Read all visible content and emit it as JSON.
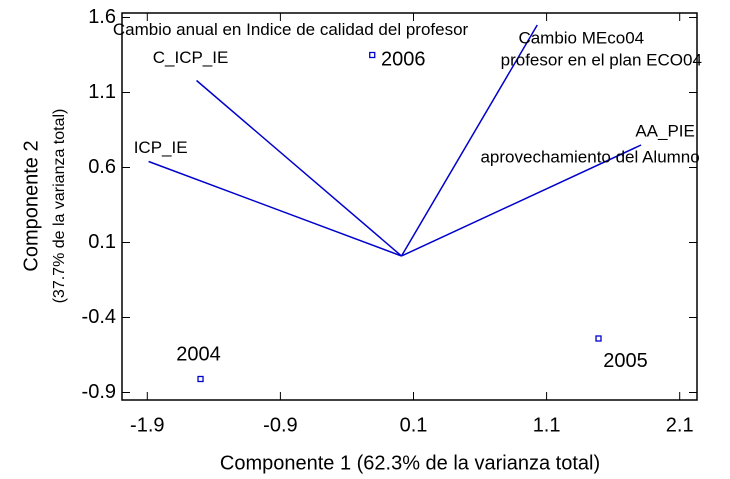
{
  "chart_data": {
    "type": "biplot",
    "xlabel": "Componente 1 (62.3% de la varianza total)",
    "ylabel": [
      "Componente 2",
      "(37.7% de la varianza total)"
    ],
    "xlim": [
      -2.09,
      2.23
    ],
    "ylim": [
      -0.95,
      1.63
    ],
    "xticks": [
      -1.9,
      -0.9,
      0.1,
      1.1,
      2.1
    ],
    "yticks": [
      -0.9,
      -0.4,
      0.1,
      0.6,
      1.1,
      1.6
    ],
    "color": "#0000cc",
    "points": {
      "labels": [
        "2004",
        "2005",
        "2006"
      ],
      "x": [
        -1.5,
        1.49,
        -0.21
      ],
      "y": [
        -0.81,
        -0.54,
        1.35
      ]
    },
    "origin": [
      0.01,
      0.01
    ],
    "vectors": [
      {
        "labels": [
          "Cambio anual en Indice de calidad del profesor",
          "C_ICP_IE"
        ],
        "x": -1.53,
        "y": 1.18
      },
      {
        "labels": [
          "ICP_IE"
        ],
        "x": -1.89,
        "y": 0.64
      },
      {
        "labels": [
          "Cambio MEco04",
          "profesor en el plan ECO04"
        ],
        "x": 1.03,
        "y": 1.55
      },
      {
        "labels": [
          "AA_PIE",
          "aprovechamiento del Alumno"
        ],
        "x": 1.81,
        "y": 0.75
      }
    ]
  }
}
